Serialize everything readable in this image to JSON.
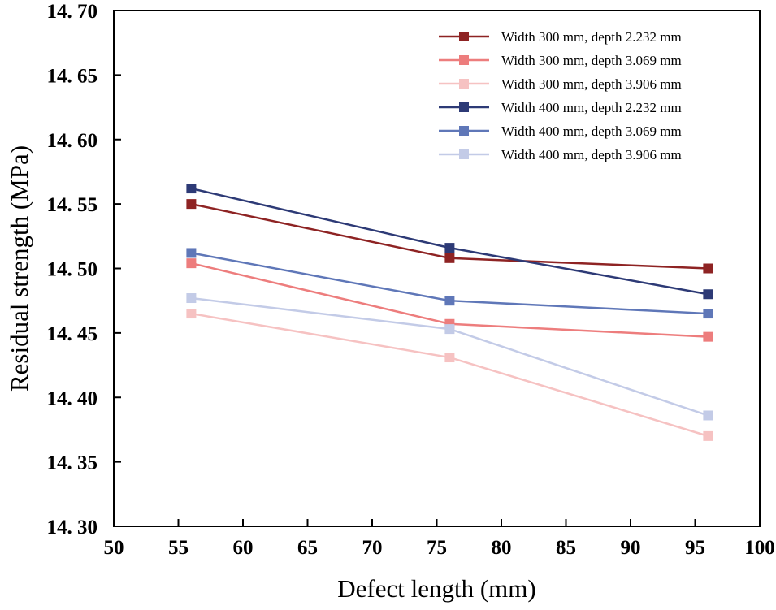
{
  "chart_data": {
    "type": "line",
    "title": "",
    "xlabel": "Defect length (mm)",
    "ylabel": "Residual strength (MPa)",
    "xlim": [
      50,
      100
    ],
    "ylim": [
      14.3,
      14.7
    ],
    "xticks": [
      50,
      55,
      60,
      65,
      70,
      75,
      80,
      85,
      90,
      95,
      100
    ],
    "yticks": [
      14.3,
      14.35,
      14.4,
      14.45,
      14.5,
      14.55,
      14.6,
      14.65,
      14.7
    ],
    "ytick_labels": [
      "14. 30",
      "14. 35",
      "14. 40",
      "14. 45",
      "14. 50",
      "14. 55",
      "14. 60",
      "14. 65",
      "14. 70"
    ],
    "grid": false,
    "legend_position": "top-right",
    "marker": "square",
    "x": [
      56,
      76,
      96
    ],
    "series": [
      {
        "name": "Width 300 mm, depth 2.232 mm",
        "color": "#8E2323",
        "values": [
          14.55,
          14.508,
          14.5
        ]
      },
      {
        "name": "Width 300 mm, depth 3.069 mm",
        "color": "#ED7D7D",
        "values": [
          14.504,
          14.457,
          14.447
        ]
      },
      {
        "name": "Width 300 mm, depth 3.906 mm",
        "color": "#F6C2C2",
        "values": [
          14.465,
          14.431,
          14.37
        ]
      },
      {
        "name": "Width 400 mm, depth 2.232 mm",
        "color": "#2D3A76",
        "values": [
          14.562,
          14.516,
          14.48
        ]
      },
      {
        "name": "Width 400 mm, depth 3.069 mm",
        "color": "#5F77B8",
        "values": [
          14.512,
          14.475,
          14.465
        ]
      },
      {
        "name": "Width 400 mm, depth 3.906 mm",
        "color": "#C3CBE7",
        "values": [
          14.477,
          14.453,
          14.386
        ]
      }
    ],
    "axis_color": "#000000",
    "background_color": "#FFFFFF"
  }
}
